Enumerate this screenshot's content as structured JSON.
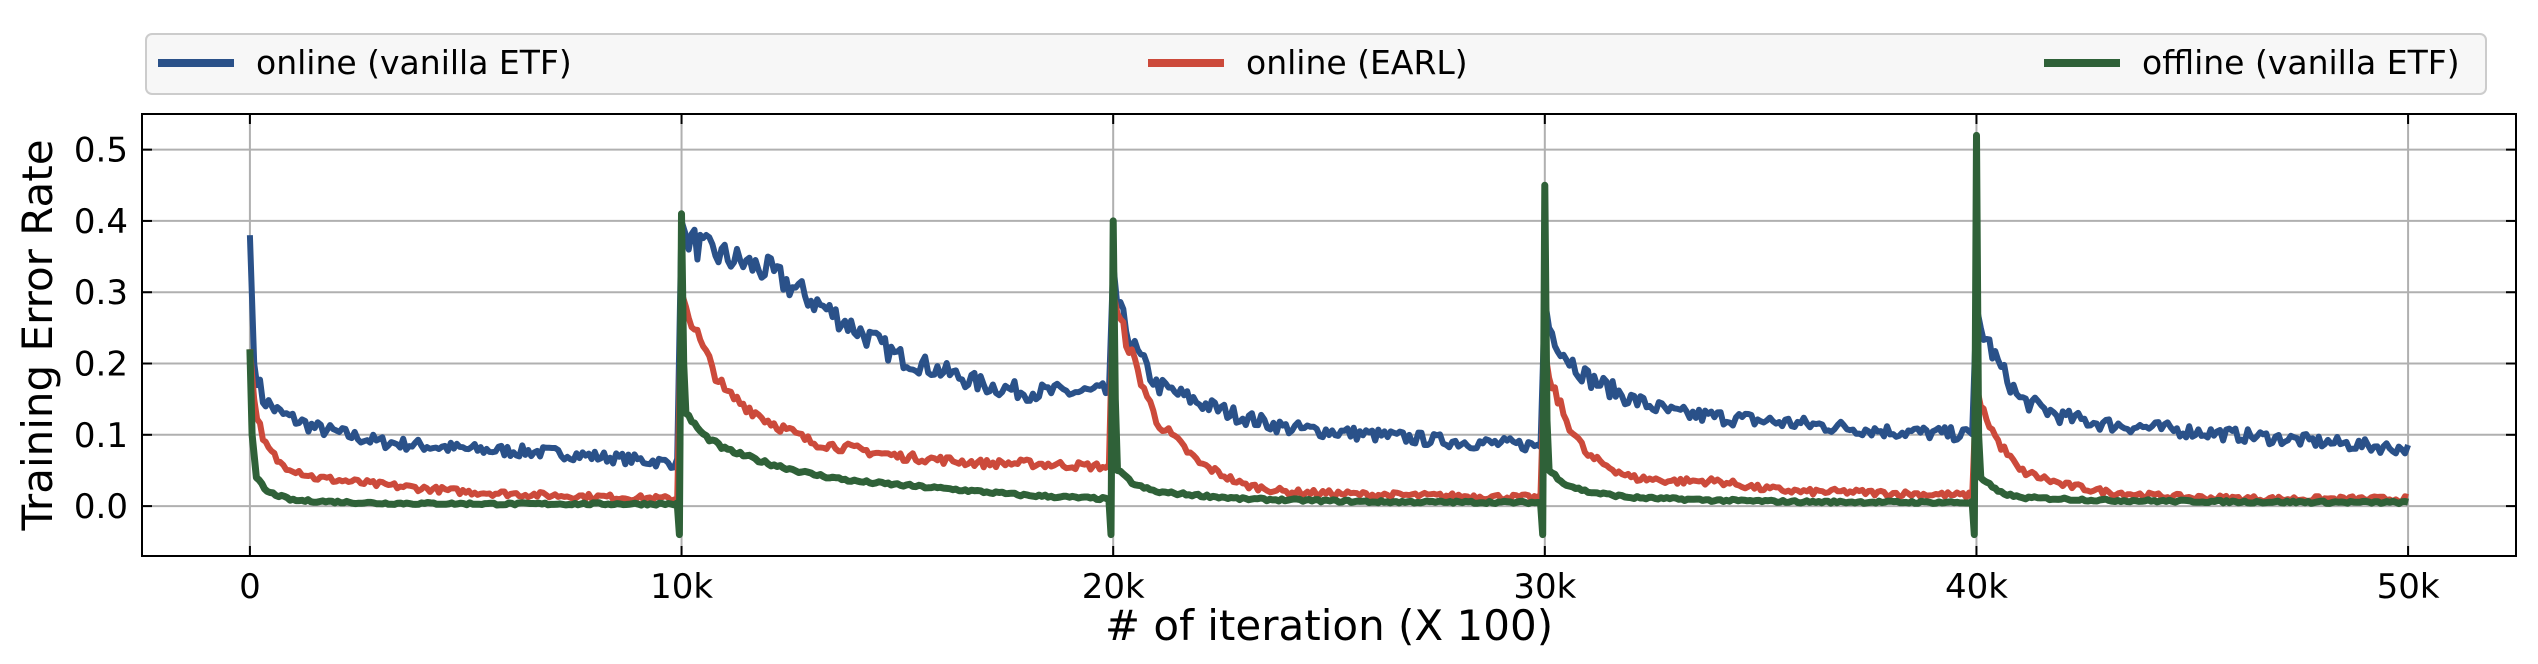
{
  "chart_data": {
    "type": "line",
    "xlabel": "# of iteration (X 100)",
    "ylabel": "Training Error Rate",
    "xlim": [
      -2500,
      52500
    ],
    "ylim": [
      -0.07,
      0.55
    ],
    "x_ticks": [
      0,
      10000,
      20000,
      30000,
      40000,
      50000
    ],
    "x_tick_labels": [
      "0",
      "10k",
      "20k",
      "30k",
      "40k",
      "50k"
    ],
    "y_ticks": [
      0.0,
      0.1,
      0.2,
      0.3,
      0.4,
      0.5
    ],
    "y_tick_labels": [
      "0.0",
      "0.1",
      "0.2",
      "0.3",
      "0.4",
      "0.5"
    ],
    "grid": true,
    "legend_position": "top (above plot)",
    "series": [
      {
        "name": "online (vanilla ETF)",
        "color": "#2a5189",
        "x": [
          0,
          100,
          300,
          700,
          1500,
          3000,
          5000,
          7000,
          9900,
          10000,
          10100,
          10500,
          11000,
          12000,
          13000,
          14000,
          15000,
          16000,
          17000,
          18000,
          19900,
          20000,
          20100,
          20500,
          21000,
          22000,
          23000,
          24000,
          25000,
          26000,
          27000,
          28000,
          29900,
          30000,
          30100,
          30500,
          31000,
          32000,
          33000,
          34000,
          35000,
          36000,
          37000,
          38000,
          39900,
          40000,
          40100,
          40500,
          41000,
          42000,
          43000,
          44000,
          45000,
          46000,
          47000,
          48000,
          49000,
          50000
        ],
        "y": [
          0.38,
          0.2,
          0.15,
          0.13,
          0.11,
          0.09,
          0.08,
          0.075,
          0.06,
          0.4,
          0.38,
          0.36,
          0.35,
          0.33,
          0.29,
          0.25,
          0.21,
          0.19,
          0.17,
          0.16,
          0.16,
          0.34,
          0.28,
          0.22,
          0.17,
          0.145,
          0.125,
          0.11,
          0.105,
          0.1,
          0.095,
          0.09,
          0.085,
          0.29,
          0.25,
          0.21,
          0.18,
          0.15,
          0.13,
          0.125,
          0.12,
          0.115,
          0.11,
          0.105,
          0.1,
          0.28,
          0.25,
          0.2,
          0.15,
          0.125,
          0.115,
          0.11,
          0.105,
          0.1,
          0.095,
          0.09,
          0.085,
          0.08
        ]
      },
      {
        "name": "online (EARL)",
        "color": "#cc4a3b",
        "x": [
          0,
          100,
          300,
          700,
          1500,
          3000,
          5000,
          7000,
          9900,
          10000,
          10100,
          10500,
          11000,
          12000,
          13000,
          14000,
          15000,
          16000,
          17000,
          18000,
          19900,
          20000,
          20100,
          20500,
          21000,
          22000,
          23000,
          24000,
          25000,
          26000,
          27000,
          28000,
          29900,
          30000,
          30100,
          30500,
          31000,
          32000,
          33000,
          34000,
          35000,
          36000,
          37000,
          38000,
          39900,
          40000,
          40100,
          40500,
          41000,
          42000,
          43000,
          44000,
          45000,
          46000,
          47000,
          48000,
          49000,
          50000
        ],
        "y": [
          0.22,
          0.15,
          0.09,
          0.06,
          0.04,
          0.03,
          0.02,
          0.015,
          0.01,
          0.3,
          0.28,
          0.22,
          0.16,
          0.12,
          0.09,
          0.08,
          0.07,
          0.065,
          0.06,
          0.06,
          0.055,
          0.3,
          0.27,
          0.2,
          0.12,
          0.06,
          0.03,
          0.02,
          0.018,
          0.016,
          0.015,
          0.014,
          0.012,
          0.22,
          0.18,
          0.12,
          0.07,
          0.04,
          0.035,
          0.035,
          0.025,
          0.02,
          0.02,
          0.018,
          0.015,
          0.17,
          0.14,
          0.09,
          0.05,
          0.03,
          0.02,
          0.015,
          0.012,
          0.011,
          0.01,
          0.01,
          0.01,
          0.01
        ]
      },
      {
        "name": "offline (vanilla ETF)",
        "color": "#2f6138",
        "x": [
          0,
          50,
          150,
          400,
          1000,
          3000,
          6000,
          9900,
          9950,
          10000,
          10050,
          10100,
          10500,
          11000,
          12000,
          13000,
          14000,
          15000,
          16000,
          17000,
          18000,
          19900,
          19950,
          20000,
          20050,
          20100,
          20500,
          21000,
          23000,
          26000,
          29900,
          29950,
          30000,
          30050,
          30100,
          30500,
          31000,
          32000,
          34000,
          36000,
          39900,
          39950,
          40000,
          40050,
          40100,
          40500,
          41000,
          43000,
          46000,
          50000
        ],
        "y": [
          0.22,
          0.1,
          0.04,
          0.02,
          0.008,
          0.004,
          0.003,
          0.003,
          -0.04,
          0.41,
          0.2,
          0.13,
          0.1,
          0.08,
          0.06,
          0.045,
          0.035,
          0.03,
          0.025,
          0.02,
          0.015,
          0.01,
          -0.04,
          0.4,
          0.15,
          0.05,
          0.03,
          0.02,
          0.01,
          0.006,
          0.005,
          -0.04,
          0.45,
          0.12,
          0.05,
          0.03,
          0.02,
          0.012,
          0.008,
          0.006,
          0.005,
          -0.04,
          0.52,
          0.1,
          0.04,
          0.02,
          0.012,
          0.008,
          0.006,
          0.005
        ]
      }
    ]
  }
}
